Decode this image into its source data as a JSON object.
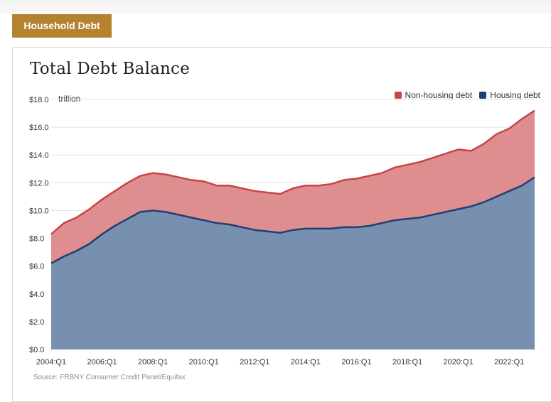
{
  "header": {
    "section_tab": "Household Debt"
  },
  "source": "Source: FRBNY Consumer Credit Panel/Equifax",
  "colors": {
    "non_housing_fill": "#de8e8e",
    "non_housing_line": "#c84545",
    "housing_fill": "#7790b0",
    "housing_line": "#1f3f72",
    "grid": "#e3e3e3",
    "brand": "#b5832f"
  },
  "chart_data": {
    "type": "area",
    "stacked": true,
    "title": "Total Debt Balance",
    "unit": "trillion",
    "ylim": [
      0,
      18
    ],
    "y_ticks": [
      0,
      2,
      4,
      6,
      8,
      10,
      12,
      14,
      16,
      18
    ],
    "y_tick_labels": [
      "$0.0",
      "$2.0",
      "$4.0",
      "$6.0",
      "$8.0",
      "$10.0",
      "$12.0",
      "$14.0",
      "$16.0",
      "$18.0"
    ],
    "x_tick_labels": [
      "2004:Q1",
      "2006:Q1",
      "2008:Q1",
      "2010:Q1",
      "2012:Q1",
      "2014:Q1",
      "2016:Q1",
      "2018:Q1",
      "2020:Q1",
      "2022:Q1"
    ],
    "xlim": [
      "2004:Q1",
      "2023:Q1"
    ],
    "grid": "horizontal",
    "legend_position": "top-right",
    "legend": [
      "Non-housing debt",
      "Housing debt"
    ],
    "x": [
      "2004:Q1",
      "2004:Q3",
      "2005:Q1",
      "2005:Q3",
      "2006:Q1",
      "2006:Q3",
      "2007:Q1",
      "2007:Q3",
      "2008:Q1",
      "2008:Q3",
      "2009:Q1",
      "2009:Q3",
      "2010:Q1",
      "2010:Q3",
      "2011:Q1",
      "2011:Q3",
      "2012:Q1",
      "2012:Q3",
      "2013:Q1",
      "2013:Q3",
      "2014:Q1",
      "2014:Q3",
      "2015:Q1",
      "2015:Q3",
      "2016:Q1",
      "2016:Q3",
      "2017:Q1",
      "2017:Q3",
      "2018:Q1",
      "2018:Q3",
      "2019:Q1",
      "2019:Q3",
      "2020:Q1",
      "2020:Q3",
      "2021:Q1",
      "2021:Q3",
      "2022:Q1",
      "2022:Q3",
      "2023:Q1"
    ],
    "series": [
      {
        "name": "Housing debt",
        "values": [
          6.2,
          6.7,
          7.1,
          7.6,
          8.3,
          8.9,
          9.4,
          9.9,
          10.0,
          9.9,
          9.7,
          9.5,
          9.3,
          9.1,
          9.0,
          8.8,
          8.6,
          8.5,
          8.4,
          8.6,
          8.7,
          8.7,
          8.7,
          8.8,
          8.8,
          8.9,
          9.1,
          9.3,
          9.4,
          9.5,
          9.7,
          9.9,
          10.1,
          10.3,
          10.6,
          11.0,
          11.4,
          11.8,
          12.4
        ]
      },
      {
        "name": "Non-housing debt",
        "values": [
          2.1,
          2.4,
          2.4,
          2.5,
          2.5,
          2.5,
          2.6,
          2.6,
          2.7,
          2.7,
          2.7,
          2.7,
          2.8,
          2.7,
          2.8,
          2.8,
          2.8,
          2.8,
          2.8,
          3.0,
          3.1,
          3.1,
          3.2,
          3.4,
          3.5,
          3.6,
          3.6,
          3.8,
          3.9,
          4.0,
          4.1,
          4.2,
          4.3,
          4.0,
          4.2,
          4.5,
          4.5,
          4.8,
          4.8
        ]
      }
    ],
    "totals": [
      8.3,
      9.1,
      9.5,
      10.1,
      10.8,
      11.4,
      12.0,
      12.5,
      12.7,
      12.6,
      12.4,
      12.2,
      12.1,
      11.8,
      11.8,
      11.6,
      11.4,
      11.3,
      11.2,
      11.6,
      11.8,
      11.8,
      11.9,
      12.2,
      12.3,
      12.5,
      12.7,
      13.1,
      13.3,
      13.5,
      13.8,
      14.1,
      14.4,
      14.3,
      14.8,
      15.5,
      15.9,
      16.6,
      17.2
    ]
  }
}
